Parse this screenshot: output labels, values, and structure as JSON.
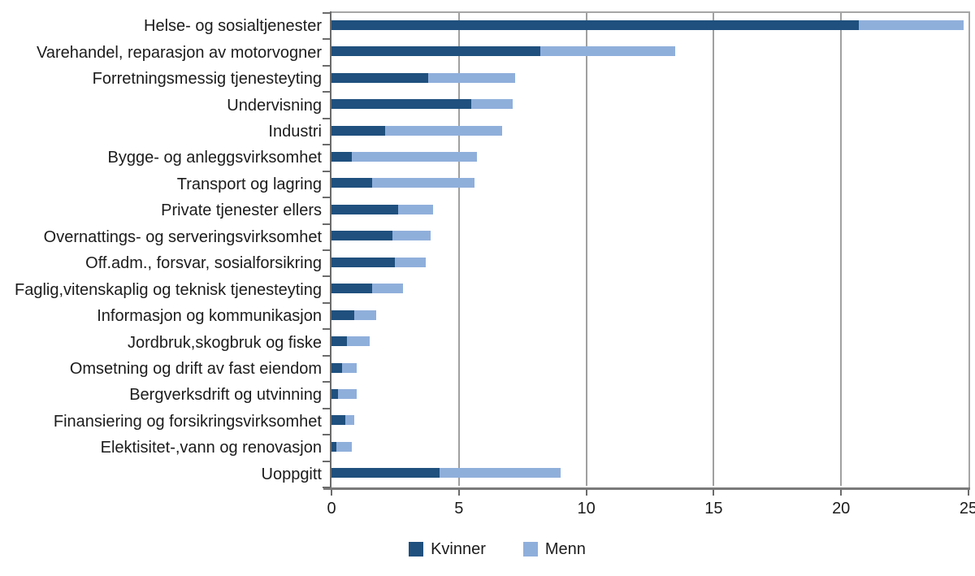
{
  "chart_data": {
    "type": "bar",
    "orientation": "horizontal",
    "stacked": true,
    "title": "",
    "xlabel": "",
    "ylabel": "",
    "xlim": [
      0,
      25
    ],
    "x_ticks": [
      0,
      5,
      10,
      15,
      20,
      25
    ],
    "grid": "vertical",
    "legend_position": "bottom",
    "categories": [
      "Helse- og sosialtjenester",
      "Varehandel, reparasjon av motorvogner",
      "Forretningsmessig tjenesteyting",
      "Undervisning",
      "Industri",
      "Bygge- og anleggsvirksomhet",
      "Transport og lagring",
      "Private tjenester ellers",
      "Overnattings- og serveringsvirksomhet",
      "Off.adm., forsvar, sosialforsikring",
      "Faglig,vitenskaplig og teknisk tjenesteyting",
      "Informasjon og kommunikasjon",
      "Jordbruk,skogbruk og fiske",
      "Omsetning og drift av fast eiendom",
      "Bergverksdrift og utvinning",
      "Finansiering og forsikringsvirksomhet",
      "Elektisitet-,vann og renovasjon",
      "Uoppgitt"
    ],
    "series": [
      {
        "name": "Kvinner",
        "color": "#1f507e",
        "values": [
          20.7,
          8.2,
          3.8,
          5.5,
          2.1,
          0.8,
          1.6,
          2.6,
          2.4,
          2.5,
          1.6,
          0.9,
          0.6,
          0.4,
          0.25,
          0.55,
          0.2,
          4.25
        ]
      },
      {
        "name": "Menn",
        "color": "#8fafdb",
        "values": [
          4.1,
          5.3,
          3.4,
          1.6,
          4.6,
          4.9,
          4.0,
          1.4,
          1.5,
          1.2,
          1.2,
          0.85,
          0.9,
          0.6,
          0.75,
          0.35,
          0.6,
          4.75
        ]
      }
    ]
  }
}
